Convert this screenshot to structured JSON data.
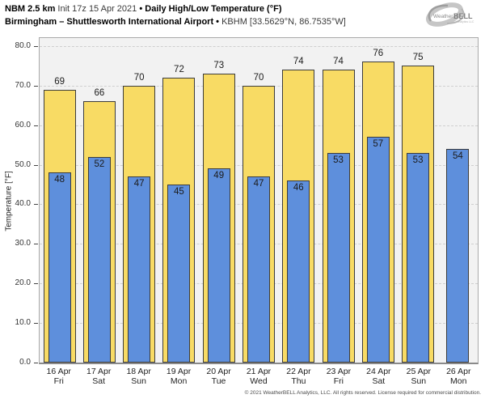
{
  "header": {
    "model_bold": "NBM 2.5 km",
    "init_text": "Init 17z 15 Apr 2021",
    "bullet": "•",
    "product_bold": "Daily High/Low Temperature (°F)",
    "location_bold": "Birmingham – Shuttlesworth International Airport",
    "station_text": "KBHM [33.5629°N, 86.7535°W]"
  },
  "logo": {
    "weather": "Weather",
    "bell": "BELL",
    "tagline": "Analytics LLC"
  },
  "colors": {
    "plot_bg": "#F2F2F2",
    "bar_border": "#3C3C3C",
    "grid": "#CFCFCF",
    "high_bar": "#F8DB64",
    "low_bar": "#5E8FDC"
  },
  "chart_data": {
    "type": "bar",
    "title": "NBM 2.5 km Init 17z 15 Apr 2021 • Daily High/Low Temperature (°F)",
    "subtitle": "Birmingham – Shuttlesworth International Airport • KBHM [33.5629°N, 86.7535°W]",
    "ylabel": "Temperature [°F]",
    "ylim": [
      0,
      82
    ],
    "yticks": [
      0,
      10,
      20,
      30,
      40,
      50,
      60,
      70,
      80
    ],
    "grid": "horizontal-dashed",
    "legend": "none",
    "categories": [
      "16 Apr",
      "17 Apr",
      "18 Apr",
      "19 Apr",
      "20 Apr",
      "21 Apr",
      "22 Apr",
      "23 Apr",
      "24 Apr",
      "25 Apr",
      "26 Apr"
    ],
    "weekdays": [
      "Fri",
      "Sat",
      "Sun",
      "Mon",
      "Tue",
      "Wed",
      "Thu",
      "Fri",
      "Sat",
      "Sun",
      "Mon"
    ],
    "series": [
      {
        "name": "Daily High",
        "color": "#F8DB64",
        "values": [
          69,
          66,
          70,
          72,
          73,
          70,
          74,
          74,
          76,
          75,
          null
        ]
      },
      {
        "name": "Daily Low",
        "color": "#5E8FDC",
        "values": [
          48,
          52,
          47,
          45,
          49,
          47,
          46,
          53,
          57,
          53,
          54
        ]
      }
    ]
  },
  "footer": {
    "copyright": "© 2021 WeatherBELL Analytics, LLC. All rights reserved. License required for commercial distribution."
  }
}
